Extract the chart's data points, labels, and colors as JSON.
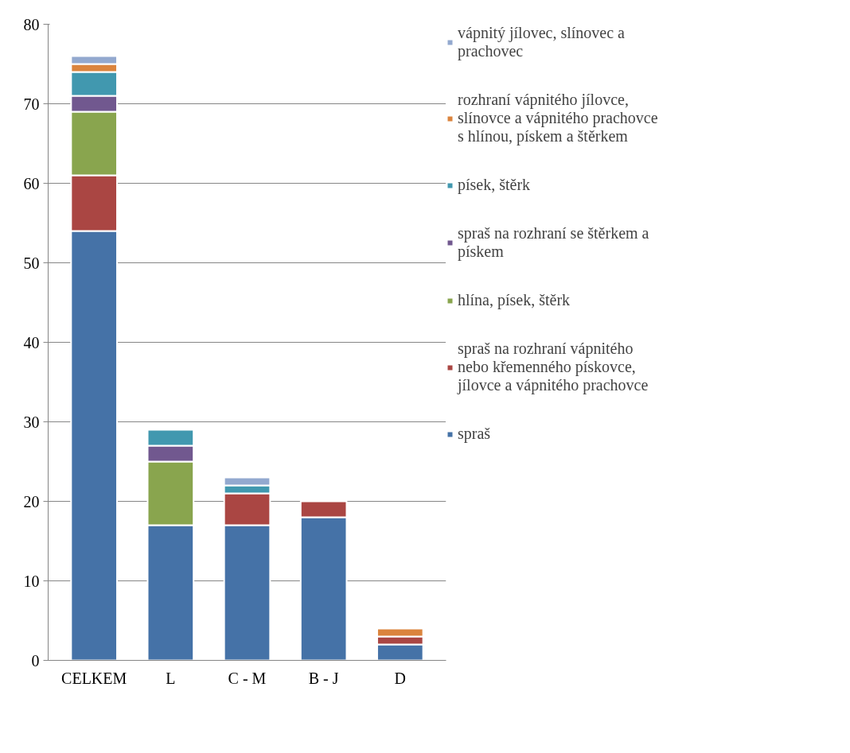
{
  "chart_data": {
    "type": "bar",
    "stacked": true,
    "categories": [
      "CELKEM",
      "L",
      "C - M",
      "B - J",
      "D"
    ],
    "series": [
      {
        "name": "spraš",
        "color": "#4572a7",
        "values": [
          54,
          17,
          17,
          18,
          2
        ]
      },
      {
        "name": "spraš na rozhraní vápnitého nebo křemenného pískovce, jílovce a vápnitého prachovce",
        "color": "#aa4643",
        "values": [
          7,
          null,
          4,
          2,
          1
        ]
      },
      {
        "name": "hlína, písek, štěrk",
        "color": "#89a54e",
        "values": [
          8,
          8,
          null,
          null,
          null
        ]
      },
      {
        "name": "spraš na rozhraní se štěrkem a pískem",
        "color": "#71588f",
        "values": [
          2,
          2,
          null,
          null,
          null
        ]
      },
      {
        "name": "písek, štěrk",
        "color": "#4198af",
        "values": [
          3,
          2,
          1,
          null,
          null
        ]
      },
      {
        "name": "rozhraní vápnitého jílovce, slínovce a vápnitého prachovce s hlínou, pískem a štěrkem",
        "color": "#db843d",
        "values": [
          1,
          null,
          null,
          null,
          1
        ]
      },
      {
        "name": "vápnitý jílovec, slínovec a prachovec",
        "color": "#93a9cf",
        "values": [
          1,
          null,
          1,
          null,
          null
        ]
      }
    ],
    "ylim": [
      0,
      80
    ],
    "yticks": [
      0,
      10,
      20,
      30,
      40,
      50,
      60,
      70,
      80
    ],
    "grid": "y",
    "legend": "right"
  }
}
